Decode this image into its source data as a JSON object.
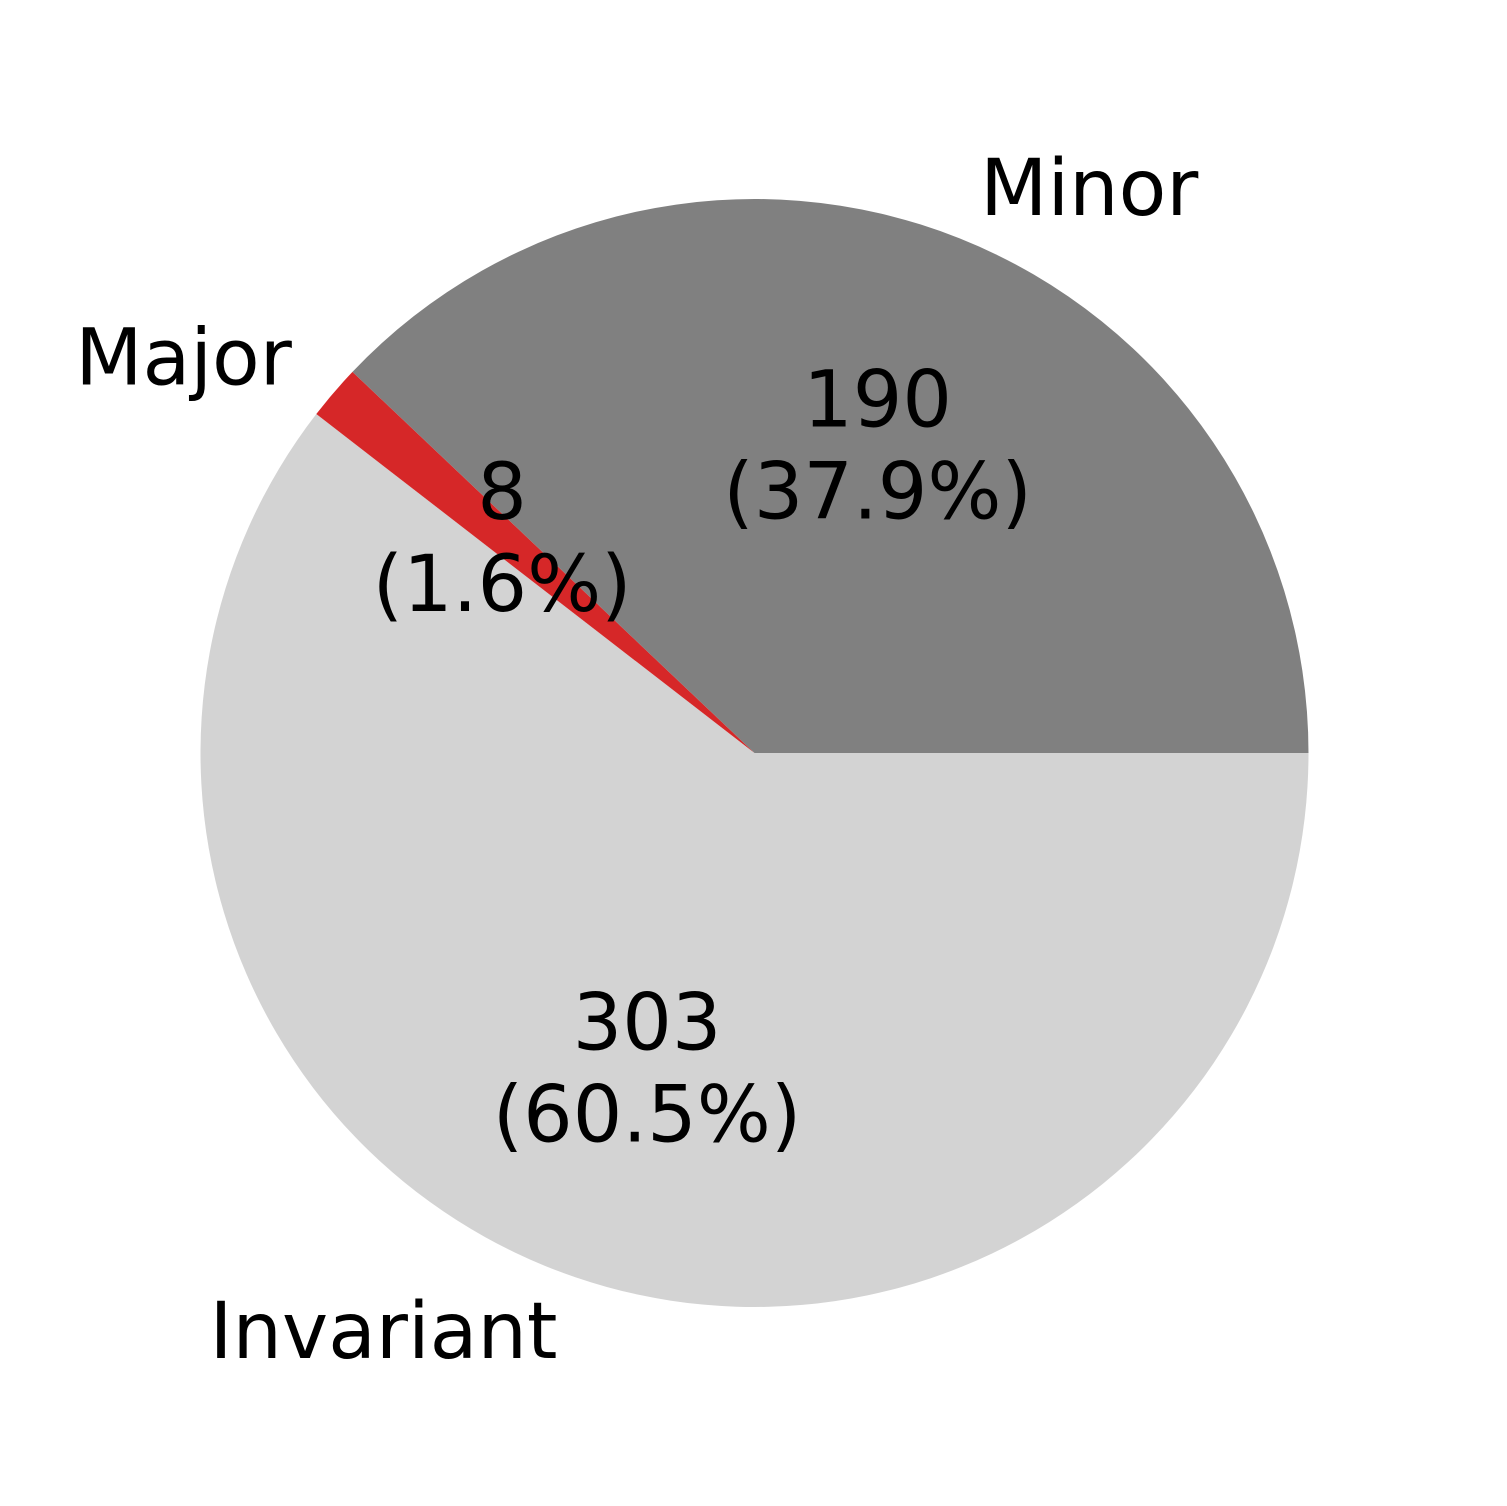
{
  "chart_data": {
    "type": "pie",
    "title": "",
    "start_angle_deg": 0,
    "direction": "clockwise",
    "slices": [
      {
        "label": "Invariant",
        "value": 303,
        "percent_text": "(60.5%)",
        "value_text": "303",
        "color": "#d3d3d3"
      },
      {
        "label": "Major",
        "value": 8,
        "percent_text": "(1.6%)",
        "value_text": "8",
        "color": "#d62728"
      },
      {
        "label": "Minor",
        "value": 190,
        "percent_text": "(37.9%)",
        "value_text": "190",
        "color": "#808080"
      }
    ]
  }
}
